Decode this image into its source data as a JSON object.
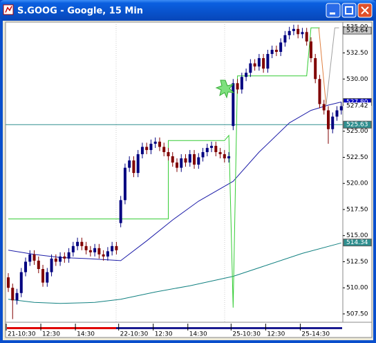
{
  "window": {
    "title": "S.GOOG - Google, 15 Min"
  },
  "chart_data": {
    "type": "candlestick",
    "categories": [
      "21-10:30",
      null,
      null,
      null,
      null,
      null,
      null,
      null,
      "12:30",
      null,
      null,
      null,
      null,
      null,
      null,
      null,
      "14:30",
      null,
      null,
      null,
      null,
      null,
      null,
      null,
      null,
      null,
      "22-10:30",
      null,
      null,
      null,
      null,
      null,
      null,
      null,
      "12:30",
      null,
      null,
      null,
      null,
      null,
      null,
      null,
      "14:30",
      null,
      null,
      null,
      null,
      null,
      null,
      null,
      null,
      null,
      "25-10:30",
      null,
      null,
      null,
      null,
      null,
      null,
      null,
      "12:30",
      null,
      null,
      null,
      null,
      null,
      null,
      null,
      "25-14:30",
      null,
      null,
      null,
      null,
      null,
      null,
      null,
      null,
      null
    ],
    "open": [
      511.0,
      510.0,
      508.8,
      509.5,
      511.5,
      512.5,
      513.2,
      512.6,
      511.8,
      510.5,
      511.5,
      512.8,
      512.5,
      513.0,
      512.8,
      513.4,
      514.0,
      514.4,
      514.0,
      513.6,
      513.4,
      513.8,
      513.2,
      513.0,
      513.5,
      514.0,
      516.2,
      518.4,
      521.5,
      522.2,
      521.0,
      522.8,
      523.5,
      523.2,
      523.8,
      524.0,
      523.5,
      523.0,
      522.6,
      522.0,
      521.5,
      522.4,
      522.0,
      522.8,
      521.8,
      522.5,
      523.0,
      523.4,
      523.6,
      523.0,
      522.8,
      522.4,
      525.5,
      529.6,
      529.0,
      530.2,
      530.6,
      531.5,
      531.2,
      532.0,
      531.0,
      532.4,
      532.8,
      532.6,
      533.5,
      534.2,
      534.6,
      534.8,
      534.3,
      534.5,
      533.6,
      532.0,
      530.0,
      527.6,
      527.0,
      525.2,
      526.4,
      527.0
    ],
    "high": [
      511.4,
      510.4,
      509.9,
      511.9,
      512.9,
      513.6,
      513.6,
      513.0,
      512.2,
      511.9,
      513.2,
      513.2,
      513.4,
      513.4,
      513.8,
      514.4,
      514.8,
      514.8,
      514.4,
      514.0,
      514.2,
      514.2,
      513.6,
      513.9,
      514.4,
      514.4,
      518.8,
      521.9,
      522.6,
      522.6,
      523.2,
      523.9,
      523.9,
      524.2,
      524.4,
      524.4,
      523.9,
      523.4,
      523.0,
      522.4,
      522.8,
      522.8,
      523.2,
      523.2,
      522.9,
      523.4,
      523.8,
      524.0,
      524.0,
      523.4,
      523.2,
      523.0,
      530.0,
      530.0,
      530.6,
      531.0,
      531.9,
      531.9,
      532.4,
      532.4,
      532.8,
      533.2,
      533.2,
      533.9,
      534.6,
      535.0,
      535.2,
      535.2,
      534.9,
      534.9,
      534.0,
      532.4,
      530.4,
      528.0,
      527.4,
      526.8,
      527.4,
      527.8
    ],
    "low": [
      509.6,
      507.0,
      508.4,
      509.1,
      511.1,
      512.1,
      512.2,
      511.4,
      510.1,
      510.1,
      511.1,
      512.1,
      512.1,
      512.4,
      512.4,
      513.0,
      513.6,
      513.6,
      513.2,
      513.0,
      513.0,
      512.8,
      512.6,
      512.6,
      513.1,
      513.2,
      515.8,
      518.0,
      521.1,
      520.6,
      520.6,
      522.4,
      522.8,
      522.8,
      523.4,
      523.1,
      522.6,
      522.2,
      521.6,
      521.1,
      521.1,
      521.6,
      521.6,
      521.4,
      521.4,
      522.1,
      522.6,
      523.0,
      522.6,
      522.4,
      522.0,
      522.0,
      525.1,
      528.6,
      528.6,
      529.8,
      530.2,
      530.8,
      530.8,
      530.6,
      530.6,
      532.0,
      532.2,
      532.2,
      533.1,
      533.8,
      534.2,
      533.9,
      533.9,
      533.2,
      531.6,
      529.6,
      527.2,
      526.6,
      523.8,
      524.8,
      526.0,
      526.6
    ],
    "close": [
      510.0,
      508.8,
      509.5,
      511.5,
      512.5,
      513.2,
      512.6,
      511.8,
      510.5,
      511.5,
      512.8,
      512.5,
      513.0,
      512.8,
      513.4,
      514.0,
      514.4,
      514.0,
      513.6,
      513.4,
      513.8,
      513.2,
      513.0,
      513.5,
      514.0,
      513.6,
      518.4,
      521.5,
      522.2,
      521.0,
      522.8,
      523.5,
      523.2,
      523.8,
      524.0,
      523.5,
      523.0,
      522.6,
      522.0,
      521.5,
      522.4,
      522.0,
      522.8,
      521.8,
      522.5,
      523.0,
      523.4,
      523.6,
      523.0,
      522.8,
      522.4,
      522.6,
      529.6,
      529.0,
      530.2,
      530.6,
      531.5,
      531.2,
      532.0,
      531.0,
      532.4,
      532.8,
      532.6,
      533.5,
      534.2,
      534.6,
      534.8,
      534.3,
      534.5,
      533.6,
      532.0,
      530.0,
      527.6,
      527.0,
      525.2,
      526.4,
      527.0,
      527.4
    ],
    "up_color": "#000080",
    "down_color": "#800000",
    "lines": [
      {
        "color": "#1c1ca8",
        "x": [
          0,
          6,
          12,
          18,
          26,
          32,
          38,
          44,
          52,
          58,
          65,
          70,
          74,
          77
        ],
        "values": [
          513.6,
          513.2,
          512.9,
          512.8,
          512.6,
          514.5,
          516.5,
          518.3,
          520.2,
          523.0,
          525.8,
          527.0,
          527.5,
          527.8
        ]
      },
      {
        "color": "#108080",
        "x": [
          0,
          6,
          12,
          20,
          26,
          34,
          42,
          52,
          60,
          68,
          77
        ],
        "values": [
          508.9,
          508.6,
          508.5,
          508.6,
          508.9,
          509.6,
          510.2,
          511.1,
          512.2,
          513.3,
          514.3
        ]
      },
      {
        "color": "#33cc33",
        "x": [
          0,
          37,
          37,
          50,
          51,
          52,
          53,
          69,
          70,
          72
        ],
        "values": [
          516.6,
          516.6,
          524.1,
          524.1,
          524.6,
          508.1,
          530.3,
          530.3,
          534.9,
          534.9
        ]
      },
      {
        "color": "#e08040",
        "x": [
          71.8,
          73.5
        ],
        "values": [
          534.9,
          527.5
        ]
      },
      {
        "color": "#a0a0a0",
        "x": [
          73.5,
          75.5,
          76.5
        ],
        "values": [
          527.5,
          534.9,
          534.9
        ]
      }
    ],
    "ylim": [
      506.7,
      535.45
    ],
    "yticks": [
      {
        "value": 535,
        "label": "535.00"
      },
      {
        "value": 532.5,
        "label": "532.50"
      },
      {
        "value": 530,
        "label": "530.00"
      },
      {
        "value": 527.5,
        "label": "527.50"
      },
      {
        "value": 525,
        "label": "525.00"
      },
      {
        "value": 522.5,
        "label": "522.50"
      },
      {
        "value": 520,
        "label": "520.00"
      },
      {
        "value": 517.5,
        "label": "517.50"
      },
      {
        "value": 515,
        "label": "515.00"
      },
      {
        "value": 512.5,
        "label": "512.50"
      },
      {
        "value": 510,
        "label": "510.00"
      },
      {
        "value": 507.5,
        "label": "507.50"
      }
    ],
    "price_tags": [
      {
        "value": 534.64,
        "label": "534.64",
        "color": "#c8c8c8"
      },
      {
        "value": 527.8,
        "label": "527.80",
        "color": "#0000c0"
      },
      {
        "value": 527.42,
        "label": "527.42",
        "color": "#ffffff"
      },
      {
        "value": 525.63,
        "label": "525.63",
        "color": "#2f8f8f"
      },
      {
        "value": 514.34,
        "label": "514.34",
        "color": "#2f8f8f"
      }
    ],
    "reference_line": {
      "value": 525.63,
      "color": "#2f8f8f"
    }
  }
}
